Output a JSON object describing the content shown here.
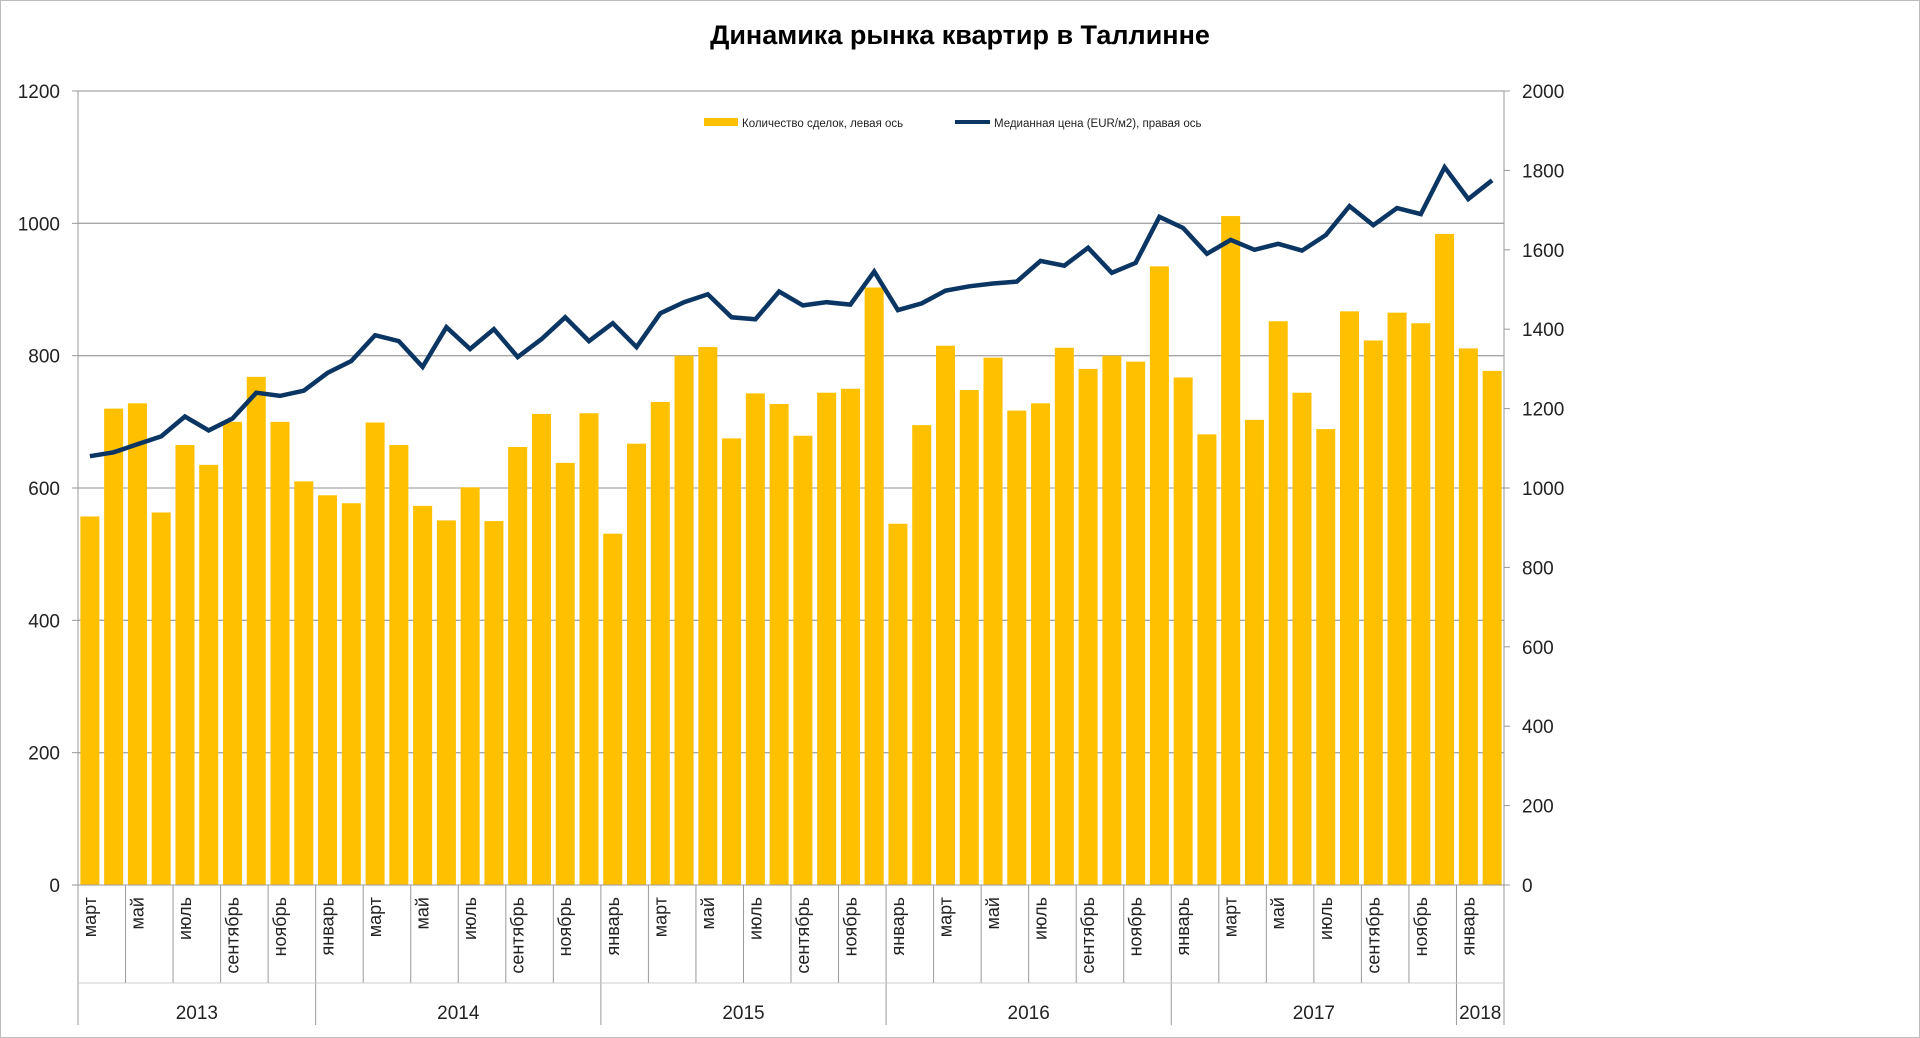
{
  "chart_data": {
    "type": "bar+line",
    "title": "Динамика рынка квартир в Таллинне",
    "legend": {
      "placement": "top-center",
      "entries": [
        "Количество сделок,  левая ось",
        "Медианная цена (EUR/м2), правая ось"
      ]
    },
    "colors": {
      "bars": "#FFC000",
      "line": "#0B3563",
      "grid": "#a6a6a6"
    },
    "left_axis": {
      "min": 0,
      "max": 1200,
      "step": 200,
      "ticks": [
        "0",
        "200",
        "400",
        "600",
        "800",
        "1000",
        "1200"
      ]
    },
    "right_axis": {
      "min": 0,
      "max": 2000,
      "step": 200,
      "ticks": [
        "0",
        "200",
        "400",
        "600",
        "800",
        "1000",
        "1200",
        "1400",
        "1600",
        "1800",
        "2000"
      ]
    },
    "years": [
      {
        "label": "2013",
        "months": 10
      },
      {
        "label": "2014",
        "months": 12
      },
      {
        "label": "2015",
        "months": 12
      },
      {
        "label": "2016",
        "months": 12
      },
      {
        "label": "2017",
        "months": 12
      },
      {
        "label": "2018",
        "months": 2
      }
    ],
    "month_labels": [
      "март",
      "",
      "май",
      "",
      "июль",
      "",
      "сентябрь",
      "",
      "ноябрь",
      "",
      "январь",
      "",
      "март",
      "",
      "май",
      "",
      "июль",
      "",
      "сентябрь",
      "",
      "ноябрь",
      "",
      "январь",
      "",
      "март",
      "",
      "май",
      "",
      "июль",
      "",
      "сентябрь",
      "",
      "ноябрь",
      "",
      "январь",
      "",
      "март",
      "",
      "май",
      "",
      "июль",
      "",
      "сентябрь",
      "",
      "ноябрь",
      "",
      "январь",
      "",
      "март",
      "",
      "май",
      "",
      "июль",
      "",
      "сентябрь",
      "",
      "ноябрь",
      "",
      "январь",
      ""
    ],
    "series": [
      {
        "name": "Количество сделок,  левая ось",
        "type": "bar",
        "axis": "left",
        "values": [
          557,
          720,
          728,
          563,
          665,
          635,
          700,
          768,
          700,
          610,
          589,
          577,
          699,
          665,
          573,
          551,
          601,
          550,
          662,
          712,
          638,
          713,
          531,
          667,
          730,
          800,
          813,
          675,
          743,
          727,
          679,
          744,
          750,
          903,
          546,
          695,
          815,
          748,
          797,
          717,
          728,
          812,
          780,
          800,
          791,
          935,
          767,
          681,
          1011,
          703,
          852,
          744,
          689,
          867,
          823,
          865,
          849,
          984,
          811,
          777
        ]
      },
      {
        "name": "Медианная цена (EUR/м2), правая ось",
        "type": "line",
        "axis": "right",
        "values": [
          1080,
          1090,
          1110,
          1130,
          1180,
          1145,
          1175,
          1240,
          1232,
          1245,
          1290,
          1320,
          1385,
          1370,
          1305,
          1405,
          1350,
          1400,
          1330,
          1375,
          1430,
          1370,
          1415,
          1355,
          1440,
          1468,
          1488,
          1430,
          1425,
          1495,
          1460,
          1468,
          1462,
          1545,
          1448,
          1465,
          1497,
          1508,
          1515,
          1520,
          1572,
          1560,
          1605,
          1542,
          1567,
          1683,
          1655,
          1590,
          1625,
          1600,
          1615,
          1598,
          1637,
          1710,
          1662,
          1705,
          1690,
          1808,
          1728,
          1775
        ]
      }
    ]
  }
}
